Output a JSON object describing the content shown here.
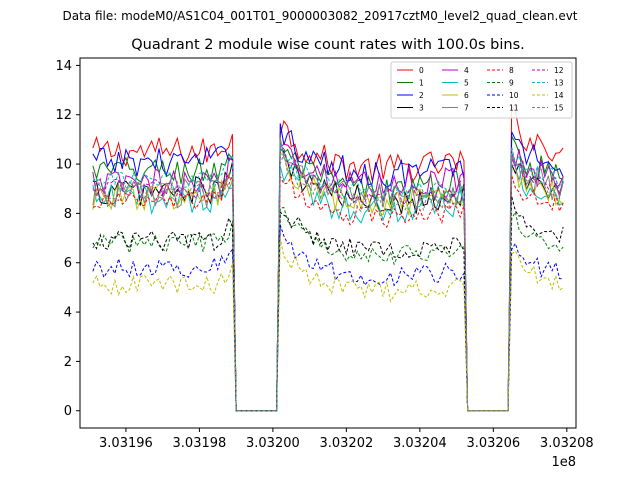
{
  "figure": {
    "suptitle": "Data file: modeM0/AS1C04_001T01_9000003082_20917cztM0_level2_quad_clean.evt"
  },
  "chart_data": {
    "type": "line",
    "title": "Quadrant 2 module wise count rates with 100.0s bins.",
    "xlabel": "",
    "ylabel": "",
    "x_offset_label": "1e8",
    "xlim": [
      3.0319475,
      3.0320825
    ],
    "ylim": [
      -0.7,
      14.3
    ],
    "x_ticks": [
      3.03196,
      3.03198,
      3.032,
      3.03202,
      3.03204,
      3.03206,
      3.03208
    ],
    "x_tick_labels": [
      "3.03196",
      "3.03198",
      "3.03200",
      "3.03202",
      "3.03204",
      "3.03206",
      "3.03208"
    ],
    "y_ticks": [
      0,
      2,
      4,
      6,
      8,
      10,
      12,
      14
    ],
    "y_tick_labels": [
      "0",
      "2",
      "4",
      "6",
      "8",
      "10",
      "12",
      "14"
    ],
    "x_segments": [
      {
        "start": 3.031951,
        "end": 3.031989,
        "step": 1e-06
      },
      {
        "start": 3.03199,
        "end": 3.032001,
        "step": 1e-06,
        "gap": true
      },
      {
        "start": 3.032002,
        "end": 3.032052,
        "step": 1e-06
      },
      {
        "start": 3.032053,
        "end": 3.032064,
        "step": 1e-06,
        "gap": true
      },
      {
        "start": 3.032065,
        "end": 3.032079,
        "step": 1e-06
      }
    ],
    "legend": {
      "placement": "top-right",
      "columns": 4
    },
    "series": [
      {
        "name": "0",
        "color": "#ff0000",
        "dashed": false,
        "levels": [
          10.5,
          10.1,
          11.0
        ]
      },
      {
        "name": "1",
        "color": "#008000",
        "dashed": false,
        "levels": [
          9.7,
          9.2,
          10.0
        ]
      },
      {
        "name": "2",
        "color": "#0000ff",
        "dashed": false,
        "levels": [
          10.1,
          9.9,
          10.4
        ]
      },
      {
        "name": "3",
        "color": "#000000",
        "dashed": false,
        "levels": [
          8.9,
          8.8,
          9.3
        ]
      },
      {
        "name": "4",
        "color": "#bf00bf",
        "dashed": false,
        "levels": [
          9.2,
          9.5,
          9.8
        ]
      },
      {
        "name": "5",
        "color": "#00bfbf",
        "dashed": false,
        "levels": [
          8.6,
          8.4,
          9.0
        ]
      },
      {
        "name": "6",
        "color": "#bfbf00",
        "dashed": false,
        "levels": [
          8.7,
          8.6,
          9.2
        ]
      },
      {
        "name": "7",
        "color": "#808080",
        "dashed": false,
        "levels": [
          8.8,
          8.9,
          9.4
        ]
      },
      {
        "name": "8",
        "color": "#ff0000",
        "dashed": true,
        "levels": [
          8.5,
          8.1,
          8.7
        ]
      },
      {
        "name": "9",
        "color": "#008000",
        "dashed": true,
        "levels": [
          6.8,
          6.6,
          7.1
        ]
      },
      {
        "name": "10",
        "color": "#0000ff",
        "dashed": true,
        "levels": [
          5.8,
          5.7,
          6.0
        ]
      },
      {
        "name": "11",
        "color": "#000000",
        "dashed": true,
        "levels": [
          6.9,
          6.8,
          7.5
        ]
      },
      {
        "name": "12",
        "color": "#bf00bf",
        "dashed": true,
        "levels": [
          9.0,
          9.0,
          9.5
        ]
      },
      {
        "name": "13",
        "color": "#00bfbf",
        "dashed": true,
        "levels": [
          9.3,
          9.1,
          9.8
        ]
      },
      {
        "name": "14",
        "color": "#bfbf00",
        "dashed": true,
        "levels": [
          5.1,
          5.1,
          5.6
        ]
      },
      {
        "name": "15",
        "color": "#808080",
        "dashed": true,
        "levels": [
          8.9,
          8.7,
          9.3
        ]
      }
    ]
  }
}
